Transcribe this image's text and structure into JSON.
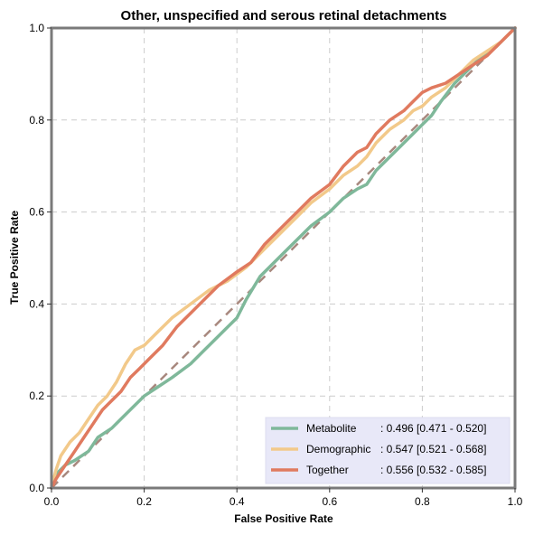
{
  "chart_data": {
    "type": "line",
    "title": "Other, unspecified and serous retinal detachments",
    "xlabel": "False Positive Rate",
    "ylabel": "True Positive Rate",
    "xlim": [
      0,
      1
    ],
    "ylim": [
      0,
      1
    ],
    "x_ticks": [
      "0.0",
      "0.2",
      "0.4",
      "0.6",
      "0.8",
      "1.0"
    ],
    "y_ticks": [
      "0.0",
      "0.2",
      "0.4",
      "0.6",
      "0.8",
      "1.0"
    ],
    "grid": true,
    "legend_position": "lower-right",
    "legend_background": "#e8e8f8",
    "reference_line": {
      "color": "#a8887e",
      "x": [
        0,
        1
      ],
      "y": [
        0,
        1
      ]
    },
    "series": [
      {
        "name": "Metabolite",
        "stat_label": ": 0.496 [0.471 - 0.520]",
        "color": "#7fb89a",
        "x": [
          0,
          0.01,
          0.03,
          0.05,
          0.08,
          0.1,
          0.13,
          0.15,
          0.18,
          0.2,
          0.23,
          0.26,
          0.3,
          0.33,
          0.36,
          0.4,
          0.42,
          0.45,
          0.48,
          0.5,
          0.53,
          0.56,
          0.6,
          0.63,
          0.66,
          0.68,
          0.7,
          0.73,
          0.76,
          0.78,
          0.8,
          0.82,
          0.84,
          0.87,
          0.9,
          0.93,
          0.96,
          0.98,
          1.0
        ],
        "y": [
          0,
          0.03,
          0.05,
          0.06,
          0.08,
          0.11,
          0.13,
          0.15,
          0.18,
          0.2,
          0.22,
          0.24,
          0.27,
          0.3,
          0.33,
          0.37,
          0.41,
          0.46,
          0.49,
          0.51,
          0.54,
          0.57,
          0.6,
          0.63,
          0.65,
          0.66,
          0.69,
          0.72,
          0.75,
          0.77,
          0.79,
          0.81,
          0.84,
          0.88,
          0.91,
          0.94,
          0.96,
          0.98,
          1.0
        ]
      },
      {
        "name": "Demographic",
        "stat_label": ": 0.547 [0.521 - 0.568]",
        "color": "#f2c98a",
        "x": [
          0,
          0.01,
          0.02,
          0.04,
          0.06,
          0.08,
          0.1,
          0.12,
          0.14,
          0.16,
          0.18,
          0.2,
          0.23,
          0.26,
          0.3,
          0.34,
          0.38,
          0.42,
          0.46,
          0.5,
          0.53,
          0.56,
          0.6,
          0.63,
          0.66,
          0.68,
          0.7,
          0.73,
          0.76,
          0.78,
          0.8,
          0.82,
          0.85,
          0.88,
          0.91,
          0.94,
          0.97,
          1.0
        ],
        "y": [
          0,
          0.04,
          0.07,
          0.1,
          0.12,
          0.15,
          0.18,
          0.2,
          0.23,
          0.27,
          0.3,
          0.31,
          0.34,
          0.37,
          0.4,
          0.43,
          0.45,
          0.48,
          0.52,
          0.56,
          0.59,
          0.62,
          0.65,
          0.68,
          0.7,
          0.72,
          0.75,
          0.78,
          0.8,
          0.82,
          0.83,
          0.85,
          0.87,
          0.9,
          0.93,
          0.95,
          0.97,
          1.0
        ]
      },
      {
        "name": "Together",
        "stat_label": ": 0.556 [0.532 - 0.585]",
        "color": "#e07a5f",
        "x": [
          0,
          0.01,
          0.03,
          0.05,
          0.07,
          0.09,
          0.11,
          0.13,
          0.15,
          0.17,
          0.19,
          0.21,
          0.24,
          0.27,
          0.3,
          0.33,
          0.36,
          0.4,
          0.43,
          0.46,
          0.5,
          0.53,
          0.56,
          0.6,
          0.63,
          0.66,
          0.68,
          0.7,
          0.73,
          0.76,
          0.78,
          0.8,
          0.82,
          0.85,
          0.88,
          0.91,
          0.94,
          0.97,
          1.0
        ],
        "y": [
          0,
          0.02,
          0.05,
          0.08,
          0.11,
          0.14,
          0.17,
          0.19,
          0.21,
          0.24,
          0.26,
          0.28,
          0.31,
          0.35,
          0.38,
          0.41,
          0.44,
          0.47,
          0.49,
          0.53,
          0.57,
          0.6,
          0.63,
          0.66,
          0.7,
          0.73,
          0.74,
          0.77,
          0.8,
          0.82,
          0.84,
          0.86,
          0.87,
          0.88,
          0.9,
          0.92,
          0.94,
          0.97,
          1.0
        ]
      }
    ]
  }
}
